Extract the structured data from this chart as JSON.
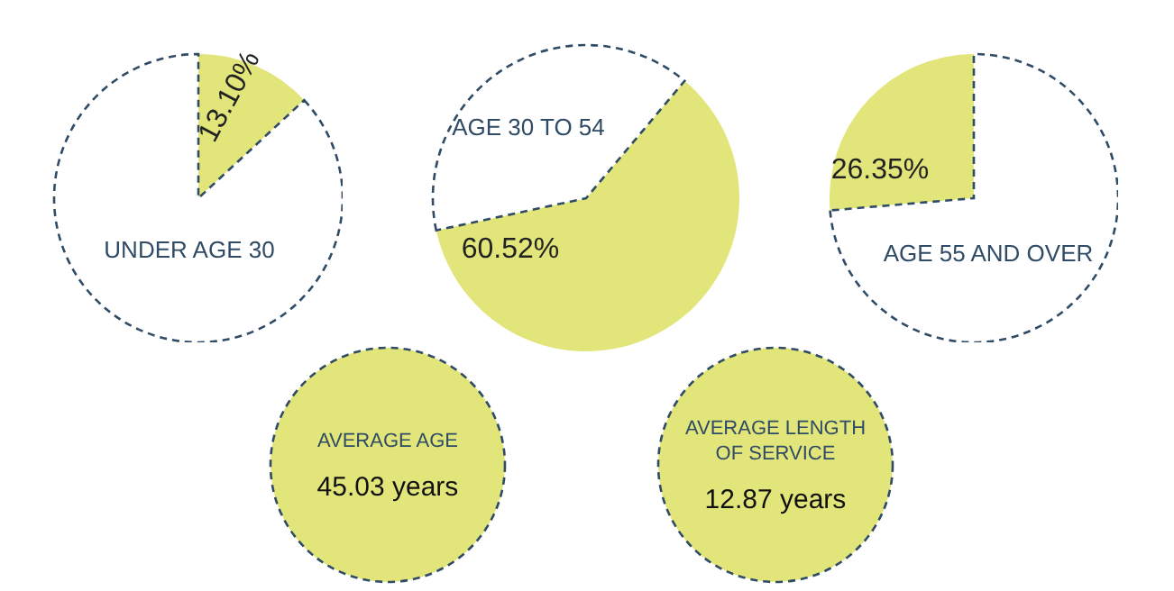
{
  "chart_data": [
    {
      "type": "pie",
      "title": "UNDER AGE 30",
      "categories": [
        null,
        null
      ],
      "values": [
        13.1,
        86.9
      ],
      "colors": [
        "#e2e57a",
        "#ffffff"
      ],
      "value_labels": [
        "13.10%",
        null
      ]
    },
    {
      "type": "pie",
      "title": "AGE 30 TO 54",
      "categories": [
        null,
        null
      ],
      "values": [
        60.52,
        39.48
      ],
      "colors": [
        "#e2e57a",
        "#ffffff"
      ],
      "value_labels": [
        "60.52%",
        null
      ]
    },
    {
      "type": "pie",
      "title": "AGE 55 AND OVER",
      "categories": [
        null,
        null
      ],
      "values": [
        26.35,
        73.65
      ],
      "colors": [
        "#e2e57a",
        "#ffffff"
      ],
      "value_labels": [
        "26.35%",
        null
      ]
    },
    {
      "type": "other",
      "annotations": [
        "AVERAGE AGE",
        "45.03 years"
      ]
    },
    {
      "type": "other",
      "annotations": [
        "AVERAGE LENGTH OF SERVICE",
        "12.87 years"
      ]
    }
  ]
}
